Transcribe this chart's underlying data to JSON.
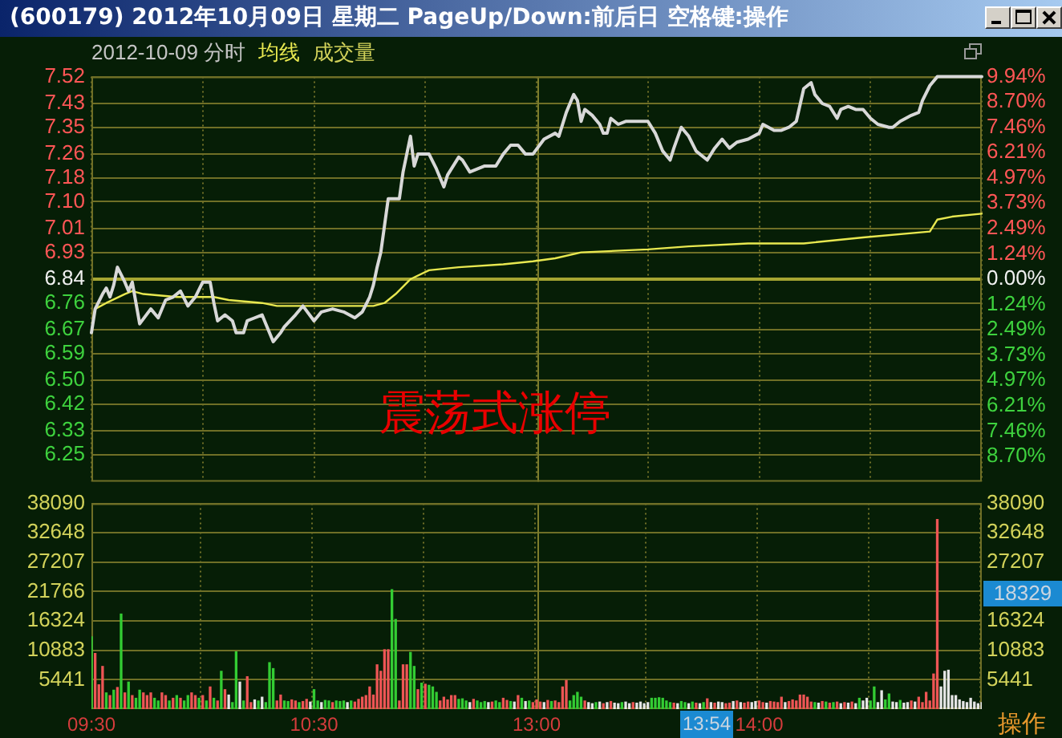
{
  "chart_data": [
    {
      "type": "line",
      "title": "(600179) 2012年10月09日 星期二 PageUp/Down:前后日 空格键:操作",
      "subtitle": "2012-10-09 分时",
      "categories": [
        "09:30",
        null,
        null,
        null,
        null,
        null,
        null,
        null,
        null,
        null,
        null,
        null,
        null,
        null,
        null,
        null,
        null,
        null,
        null,
        null,
        null,
        null,
        null,
        null,
        null,
        null,
        null,
        null,
        null,
        null,
        null,
        null,
        null,
        null,
        null,
        null,
        null,
        null,
        null,
        null,
        null,
        null,
        null,
        null,
        null,
        null,
        null,
        null,
        null,
        null,
        null,
        null,
        null,
        null,
        null,
        null,
        null,
        null,
        null,
        null,
        "10:30",
        null,
        null,
        null,
        null,
        null,
        null,
        null,
        null,
        null,
        null,
        null,
        null,
        null,
        null,
        null,
        null,
        null,
        null,
        null,
        null,
        null,
        null,
        null,
        null,
        null,
        null,
        null,
        null,
        null,
        null,
        null,
        null,
        null,
        null,
        null,
        null,
        null,
        null,
        null,
        null,
        null,
        null,
        null,
        null,
        null,
        null,
        null,
        null,
        null,
        null,
        null,
        null,
        null,
        null,
        null,
        null,
        null,
        null,
        null,
        "13:00",
        null,
        null,
        null,
        null,
        null,
        null,
        null,
        null,
        null,
        null,
        null,
        null,
        null,
        null,
        null,
        null,
        null,
        null,
        null,
        null,
        null,
        null,
        null,
        null,
        null,
        null,
        null,
        null,
        null,
        null,
        null,
        null,
        null,
        null,
        null,
        null,
        null,
        null,
        null,
        null,
        null,
        null,
        null,
        null,
        null,
        null,
        null,
        null,
        null,
        null,
        null,
        null,
        null,
        null,
        null,
        null,
        null,
        null,
        null,
        "14:00",
        null,
        null,
        null,
        null,
        null,
        null,
        null,
        null,
        null,
        null,
        null,
        null,
        null,
        null,
        null,
        null,
        null,
        null,
        null,
        null,
        null,
        null,
        null,
        null,
        null,
        null,
        null,
        null,
        null,
        null,
        null,
        null,
        null,
        null,
        null,
        null,
        null,
        null,
        null,
        null,
        null,
        null,
        null,
        null,
        null,
        null,
        null,
        null,
        null,
        null,
        null,
        null,
        null,
        null,
        null,
        null,
        null,
        null,
        null,
        null
      ],
      "series": [
        {
          "color": "#d8d8d8",
          "values": [
            6.66,
            6.74,
            null,
            6.79,
            6.81,
            6.78,
            6.82,
            6.88,
            null,
            6.83,
            6.8,
            6.83,
            null,
            6.69,
            null,
            null,
            6.74,
            null,
            6.71,
            null,
            6.77,
            null,
            6.78,
            null,
            6.8,
            null,
            6.75,
            null,
            6.78,
            null,
            6.83,
            null,
            6.83,
            6.76,
            6.7,
            null,
            6.72,
            null,
            6.7,
            6.66,
            null,
            6.66,
            6.7,
            null,
            6.71,
            null,
            6.72,
            6.69,
            null,
            6.63,
            null,
            6.66,
            6.68,
            null,
            null,
            6.72,
            null,
            6.75,
            null,
            null,
            6.7,
            null,
            6.73,
            null,
            null,
            6.74,
            null,
            null,
            6.73,
            null,
            null,
            6.71,
            null,
            6.73,
            null,
            6.78,
            6.82,
            6.88,
            6.93,
            7.02,
            7.11,
            null,
            null,
            7.11,
            7.2,
            null,
            7.32,
            7.22,
            7.26,
            null,
            null,
            7.26,
            null,
            7.21,
            null,
            7.15,
            7.19,
            null,
            null,
            7.25,
            7.24,
            null,
            7.2,
            null,
            7.21,
            null,
            7.22,
            null,
            null,
            7.22,
            null,
            7.26,
            null,
            7.29,
            null,
            7.29,
            null,
            7.26,
            null,
            7.26,
            null,
            null,
            7.31,
            null,
            null,
            7.33,
            7.32,
            null,
            7.4,
            null,
            7.46,
            7.44,
            7.37,
            7.41,
            null,
            7.39,
            null,
            7.36,
            7.33,
            7.33,
            7.38,
            null,
            7.36,
            null,
            7.37,
            7.37,
            7.37,
            7.37,
            7.37,
            7.37,
            7.37,
            null,
            7.33,
            null,
            7.27,
            null,
            7.24,
            7.28,
            null,
            7.35,
            null,
            7.32,
            null,
            7.27,
            null,
            null,
            7.24,
            null,
            7.28,
            null,
            7.31,
            null,
            7.28,
            null,
            7.3,
            null,
            null,
            7.31,
            null,
            null,
            7.33,
            7.36,
            null,
            null,
            7.34,
            null,
            7.34,
            null,
            7.35,
            null,
            7.37,
            null,
            7.48,
            null,
            7.5,
            7.46,
            null,
            7.43,
            null,
            7.42,
            null,
            7.38,
            7.41,
            null,
            7.42,
            null,
            7.41,
            null,
            7.41,
            null,
            7.38,
            null,
            7.36,
            null,
            null,
            7.35,
            7.35,
            null,
            7.37,
            null,
            null,
            7.39,
            null,
            7.4,
            7.44,
            null,
            7.49,
            null,
            7.52,
            7.52,
            7.52,
            7.52,
            7.52,
            7.52,
            7.52,
            7.52,
            7.52,
            7.52,
            7.52,
            7.52,
            7.52
          ]
        },
        {
          "name": "均线",
          "color": "#e8e850",
          "values": [
            null,
            6.74,
            null,
            null,
            6.76,
            null,
            null,
            null,
            null,
            6.79,
            null,
            6.8,
            null,
            null,
            6.79,
            null,
            null,
            null,
            null,
            null,
            null,
            null,
            null,
            6.78,
            null,
            null,
            null,
            null,
            null,
            null,
            null,
            null,
            null,
            6.78,
            null,
            null,
            null,
            6.77,
            null,
            null,
            null,
            null,
            null,
            null,
            null,
            null,
            6.76,
            null,
            null,
            null,
            6.75,
            null,
            null,
            null,
            null,
            null,
            null,
            null,
            null,
            null,
            null,
            null,
            null,
            null,
            null,
            null,
            null,
            null,
            null,
            null,
            null,
            null,
            null,
            null,
            null,
            null,
            6.75,
            null,
            null,
            6.76,
            null,
            null,
            6.79,
            null,
            null,
            null,
            6.84,
            null,
            null,
            null,
            null,
            6.87,
            null,
            null,
            null,
            null,
            null,
            null,
            null,
            6.88,
            null,
            null,
            null,
            null,
            null,
            null,
            null,
            null,
            null,
            null,
            null,
            6.89,
            null,
            null,
            null,
            null,
            null,
            null,
            null,
            6.9,
            null,
            null,
            null,
            null,
            null,
            6.91,
            null,
            null,
            null,
            null,
            null,
            null,
            6.93,
            null,
            null,
            null,
            null,
            null,
            null,
            null,
            null,
            null,
            null,
            null,
            null,
            null,
            null,
            null,
            null,
            null,
            6.94,
            null,
            null,
            null,
            null,
            null,
            null,
            null,
            null,
            null,
            null,
            6.95,
            null,
            null,
            null,
            null,
            null,
            null,
            null,
            null,
            null,
            null,
            null,
            null,
            null,
            null,
            null,
            6.96,
            null,
            null,
            null,
            null,
            null,
            null,
            null,
            null,
            null,
            null,
            null,
            null,
            null,
            null,
            6.96,
            null,
            null,
            null,
            null,
            null,
            null,
            null,
            null,
            null,
            null,
            null,
            null,
            null,
            null,
            null,
            6.98,
            null,
            null,
            null,
            null,
            null,
            null,
            null,
            null,
            null,
            null,
            null,
            null,
            null,
            null,
            null,
            null,
            null,
            7.0,
            null,
            7.04,
            null,
            null,
            null,
            7.05,
            null,
            null,
            null,
            null,
            null,
            null,
            null,
            7.06
          ]
        }
      ],
      "ylim": [
        6.16,
        7.52
      ],
      "yticks": [
        7.52,
        7.43,
        7.35,
        7.26,
        7.18,
        {
          "value": 7.1,
          "label": "7.10"
        },
        7.01,
        6.93,
        6.84,
        6.76,
        6.67,
        6.59,
        {
          "value": 6.5,
          "label": "6.50"
        },
        6.42,
        6.33,
        6.25
      ],
      "y2lim": [
        -9.94,
        9.94
      ],
      "y2ticks": [
        {
          "value": 9.94,
          "label": "9.94%"
        },
        {
          "value": 8.7,
          "label": "8.70%"
        },
        {
          "value": 7.46,
          "label": "7.46%"
        },
        {
          "value": 6.21,
          "label": "6.21%"
        },
        {
          "value": 4.97,
          "label": "4.97%"
        },
        {
          "value": 3.73,
          "label": "3.73%"
        },
        {
          "value": 2.49,
          "label": "2.49%"
        },
        {
          "value": 1.24,
          "label": "1.24%"
        },
        {
          "value": 0,
          "label": "0.00%"
        },
        {
          "value": -1.24,
          "label": "1.24%"
        },
        {
          "value": -2.49,
          "label": "2.49%"
        },
        {
          "value": -3.73,
          "label": "3.73%"
        },
        {
          "value": -4.97,
          "label": "4.97%"
        },
        {
          "value": -6.21,
          "label": "6.21%"
        },
        {
          "value": -7.46,
          "label": "7.46%"
        },
        {
          "value": -8.7,
          "label": "8.70%"
        }
      ],
      "ref_lines": [
        {
          "axis": "y",
          "value": 6.84,
          "color": "#a6a632"
        },
        {
          "axis": "x",
          "value": "13:00",
          "color": "#7c7c2c"
        }
      ],
      "grid": true,
      "legend": "top left",
      "tick_labels": "y",
      "annotations": [
        "震荡式涨停"
      ]
    },
    {
      "type": "bar",
      "categories": [
        "09:30",
        null,
        null,
        null,
        null,
        null,
        null,
        null,
        null,
        null,
        null,
        null,
        null,
        null,
        null,
        null,
        null,
        null,
        null,
        null,
        null,
        null,
        null,
        null,
        null,
        null,
        null,
        null,
        null,
        null,
        null,
        null,
        null,
        null,
        null,
        null,
        null,
        null,
        null,
        null,
        null,
        null,
        null,
        null,
        null,
        null,
        null,
        null,
        null,
        null,
        null,
        null,
        null,
        null,
        null,
        null,
        null,
        null,
        null,
        null,
        "10:30",
        null,
        null,
        null,
        null,
        null,
        null,
        null,
        null,
        null,
        null,
        null,
        null,
        null,
        null,
        null,
        null,
        null,
        null,
        null,
        null,
        null,
        null,
        null,
        null,
        null,
        null,
        null,
        null,
        null,
        null,
        null,
        null,
        null,
        null,
        null,
        null,
        null,
        null,
        null,
        null,
        null,
        null,
        null,
        null,
        null,
        null,
        null,
        null,
        null,
        null,
        null,
        null,
        null,
        null,
        null,
        null,
        null,
        null,
        null,
        "13:00",
        null,
        null,
        null,
        null,
        null,
        null,
        null,
        null,
        null,
        null,
        null,
        null,
        null,
        null,
        null,
        null,
        null,
        null,
        null,
        null,
        null,
        null,
        null,
        null,
        null,
        null,
        null,
        null,
        null,
        null,
        null,
        null,
        null,
        null,
        null,
        null,
        null,
        null,
        null,
        null,
        null,
        null,
        null,
        null,
        null,
        null,
        null,
        null,
        null,
        null,
        null,
        null,
        null,
        null,
        null,
        null,
        null,
        null,
        null,
        "14:00",
        null,
        null,
        null,
        null,
        null,
        null,
        null,
        null,
        null,
        null,
        null,
        null,
        null,
        null,
        null,
        null,
        null,
        null,
        null,
        null,
        null,
        null,
        null,
        null,
        null,
        null,
        null,
        null,
        null,
        null,
        null,
        null,
        null,
        null,
        null,
        null,
        null,
        null,
        null,
        null,
        null,
        null,
        null,
        null,
        null,
        null,
        null,
        null,
        null,
        null,
        null,
        null,
        null,
        null,
        null,
        null,
        null,
        null,
        null,
        null
      ],
      "series": [
        {
          "name": "成交量",
          "values": [
            13400,
            10300,
            4500,
            7900,
            3000,
            2500,
            3500,
            4000,
            17600,
            3000,
            5000,
            2500,
            2000,
            3500,
            3000,
            2500,
            3000,
            2000,
            1500,
            3000,
            2500,
            1500,
            2000,
            2500,
            2000,
            1500,
            2500,
            3000,
            2500,
            2000,
            2500,
            1500,
            4100,
            2000,
            1500,
            7000,
            3600,
            2600,
            1200,
            10600,
            5000,
            1500,
            6000,
            1200,
            1700,
            1500,
            2200,
            1200,
            8600,
            7500,
            1500,
            2600,
            1500,
            1400,
            1700,
            1500,
            1200,
            1400,
            1800,
            1300,
            3600,
            1500,
            1200,
            1600,
            1500,
            1200,
            1500,
            1400,
            1500,
            1200,
            1500,
            1300,
            1800,
            2200,
            2500,
            4100,
            2600,
            8200,
            7000,
            11000,
            11000,
            22100,
            16600,
            1500,
            8200,
            8200,
            10500,
            7900,
            3600,
            4800,
            4600,
            4400,
            4100,
            3100,
            1500,
            2200,
            1700,
            2500,
            2500,
            1800,
            1900,
            1500,
            1200,
            1800,
            1500,
            1200,
            1400,
            1200,
            1300,
            1500,
            1200,
            2000,
            1600,
            1400,
            1300,
            2500,
            2000,
            1400,
            1500,
            1200,
            1700,
            1300,
            1200,
            1600,
            1400,
            1500,
            1200,
            4100,
            5300,
            1500,
            2500,
            3100,
            2200,
            1500,
            1200,
            1000,
            1200,
            1300,
            1000,
            1200,
            1400,
            1100,
            1000,
            1200,
            1300,
            1000,
            1200,
            1100,
            1300,
            1000,
            1200,
            2000,
            2000,
            2100,
            2000,
            1500,
            1200,
            1100,
            1000,
            1400,
            1200,
            1000,
            1300,
            1100,
            1000,
            1200,
            1900,
            1200,
            1100,
            1300,
            1200,
            1000,
            1100,
            1400,
            1500,
            1200,
            1100,
            1300,
            1200,
            1400,
            1500,
            1200,
            1100,
            1400,
            1300,
            1200,
            2200,
            1200,
            1400,
            1700,
            1500,
            2600,
            2600,
            2200,
            1300,
            1200,
            1100,
            1400,
            1300,
            1100,
            1200,
            1300,
            1000,
            1200,
            1100,
            1300,
            1000,
            2000,
            1500,
            2000,
            1500,
            4100,
            1200,
            3400,
            1700,
            2800,
            1300,
            1200,
            1600,
            1100,
            1200,
            1500,
            1300,
            2200,
            1200,
            3100,
            1500,
            6500,
            35100,
            4100,
            7000,
            7200,
            2500,
            2500,
            1700,
            1400,
            1200,
            2000,
            1300,
            1000,
            1200
          ],
          "colors": [
            "#33cc33",
            "#ee5555",
            "#ee5555",
            "#ee5555",
            "#33cc33",
            "#ee5555",
            "#33cc33",
            "#ee5555",
            "#33cc33",
            "#ee5555",
            "#33cc33",
            "#ee5555",
            "#33cc33",
            "#33cc33",
            "#ee5555",
            "#ee5555",
            "#ee5555",
            "#33cc33",
            "#33cc33",
            "#ee5555",
            "#ee5555",
            "#33cc33",
            "#ee5555",
            "#33cc33",
            "#ee5555",
            "#33cc33",
            "#33cc33",
            "#ee5555",
            "#ee5555",
            "#33cc33",
            "#ee5555",
            "#33cc33",
            "#ee5555",
            "#33cc33",
            "#ee5555",
            "#33cc33",
            "#ee5555",
            "#e6e6e6",
            "#33cc33",
            "#33cc33",
            "#e6e6e6",
            "#33cc33",
            "#ee5555",
            "#ee5555",
            "#e6e6e6",
            "#33cc33",
            "#e6e6e6",
            "#33cc33",
            "#33cc33",
            "#33cc33",
            "#ee5555",
            "#ee5555",
            "#33cc33",
            "#33cc33",
            "#ee5555",
            "#ee5555",
            "#33cc33",
            "#ee5555",
            "#ee5555",
            "#e6e6e6",
            "#33cc33",
            "#33cc33",
            "#e6e6e6",
            "#33cc33",
            "#33cc33",
            "#ee5555",
            "#33cc33",
            "#33cc33",
            "#33cc33",
            "#e6e6e6",
            "#33cc33",
            "#ee5555",
            "#ee5555",
            "#ee5555",
            "#ee5555",
            "#ee5555",
            "#ee5555",
            "#ee5555",
            "#ee5555",
            "#ee5555",
            "#ee5555",
            "#33cc33",
            "#33cc33",
            "#ee5555",
            "#ee5555",
            "#ee5555",
            "#33cc33",
            "#33cc33",
            "#ee5555",
            "#33cc33",
            "#ee5555",
            "#33cc33",
            "#33cc33",
            "#33cc33",
            "#ee5555",
            "#ee5555",
            "#ee5555",
            "#ee5555",
            "#ee5555",
            "#33cc33",
            "#33cc33",
            "#33cc33",
            "#e6e6e6",
            "#ee5555",
            "#33cc33",
            "#33cc33",
            "#33cc33",
            "#e6e6e6",
            "#ee5555",
            "#33cc33",
            "#33cc33",
            "#ee5555",
            "#ee5555",
            "#33cc33",
            "#e6e6e6",
            "#ee5555",
            "#33cc33",
            "#e6e6e6",
            "#33cc33",
            "#ee5555",
            "#ee5555",
            "#ee5555",
            "#e6e6e6",
            "#ee5555",
            "#33cc33",
            "#ee5555",
            "#ee5555",
            "#ee5555",
            "#ee5555",
            "#33cc33",
            "#33cc33",
            "#33cc33",
            "#33cc33",
            "#ee5555",
            "#e6e6e6",
            "#e6e6e6",
            "#33cc33",
            "#e6e6e6",
            "#ee5555",
            "#e6e6e6",
            "#ee5555",
            "#e6e6e6",
            "#e6e6e6",
            "#33cc33",
            "#e6e6e6",
            "#e6e6e6",
            "#ee5555",
            "#e6e6e6",
            "#e6e6e6",
            "#e6e6e6",
            "#e6e6e6",
            "#33cc33",
            "#33cc33",
            "#33cc33",
            "#33cc33",
            "#33cc33",
            "#33cc33",
            "#ee5555",
            "#e6e6e6",
            "#33cc33",
            "#33cc33",
            "#e6e6e6",
            "#33cc33",
            "#ee5555",
            "#e6e6e6",
            "#33cc33",
            "#ee5555",
            "#e6e6e6",
            "#ee5555",
            "#e6e6e6",
            "#e6e6e6",
            "#ee5555",
            "#ee5555",
            "#e6e6e6",
            "#ee5555",
            "#e6e6e6",
            "#ee5555",
            "#ee5555",
            "#e6e6e6",
            "#e6e6e6",
            "#ee5555",
            "#ee5555",
            "#e6e6e6",
            "#ee5555",
            "#ee5555",
            "#ee5555",
            "#ee5555",
            "#e6e6e6",
            "#ee5555",
            "#ee5555",
            "#ee5555",
            "#ee5555",
            "#ee5555",
            "#ee5555",
            "#ee5555",
            "#33cc33",
            "#e6e6e6",
            "#ee5555",
            "#33cc33",
            "#ee5555",
            "#33cc33",
            "#ee5555",
            "#e6e6e6",
            "#ee5555",
            "#e6e6e6",
            "#ee5555",
            "#e6e6e6",
            "#33cc33",
            "#e6e6e6",
            "#e6e6e6",
            "#33cc33",
            "#33cc33",
            "#e6e6e6",
            "#e6e6e6",
            "#33cc33",
            "#33cc33",
            "#e6e6e6",
            "#e6e6e6",
            "#33cc33",
            "#e6e6e6",
            "#e6e6e6",
            "#ee5555",
            "#e6e6e6",
            "#ee5555",
            "#ee5555",
            "#ee5555",
            "#ee5555",
            "#ee5555",
            "#ee5555",
            "#e6e6e6",
            "#e6e6e6",
            "#e6e6e6",
            "#e6e6e6",
            "#e6e6e6",
            "#e6e6e6",
            "#e6e6e6",
            "#e6e6e6",
            "#e6e6e6",
            "#e6e6e6",
            "#e6e6e6",
            "#e6e6e6"
          ]
        }
      ],
      "ylim": [
        0,
        38090
      ],
      "yticks": [
        5441,
        10883,
        16324,
        21766,
        27207,
        32648,
        38090
      ],
      "y2lim": [
        0,
        38090
      ],
      "y2ticks": [
        5441,
        10883,
        16324,
        27207,
        32648,
        38090
      ],
      "ref_lines": [
        {
          "axis": "x",
          "value": "13:00",
          "color": "#7c7c2c"
        }
      ],
      "grid": true,
      "legend": "top left",
      "annotations": [
        "18329",
        "13:54",
        "操作"
      ]
    }
  ]
}
